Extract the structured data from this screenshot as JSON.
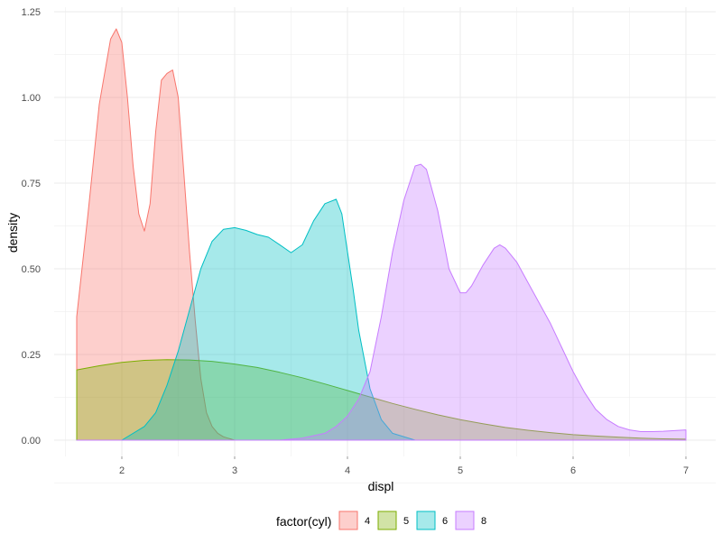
{
  "chart_data": {
    "type": "area",
    "title": "",
    "xlabel": "displ",
    "ylabel": "density",
    "xlim": [
      1.6,
      7.0
    ],
    "ylim": [
      0,
      1.25
    ],
    "x_ticks": [
      2,
      3,
      4,
      5,
      6,
      7
    ],
    "x_tick_labels": [
      "2",
      "3",
      "4",
      "5",
      "6",
      "7"
    ],
    "y_ticks": [
      0,
      0.25,
      0.5,
      0.75,
      1.0,
      1.25
    ],
    "y_tick_labels": [
      "0.00",
      "0.25",
      "0.50",
      "0.75",
      "1.00",
      "1.25"
    ],
    "grid": true,
    "legend": {
      "title": "factor(cyl)",
      "position": "bottom"
    },
    "series": [
      {
        "name": "4",
        "fill": "#F8766D",
        "x": [
          1.6,
          1.7,
          1.8,
          1.9,
          1.95,
          2.0,
          2.05,
          2.1,
          2.15,
          2.2,
          2.25,
          2.3,
          2.35,
          2.4,
          2.45,
          2.5,
          2.55,
          2.6,
          2.65,
          2.7,
          2.75,
          2.8,
          2.85,
          2.9,
          3.0,
          3.1,
          3.2
        ],
        "y": [
          0.36,
          0.66,
          0.98,
          1.17,
          1.2,
          1.16,
          1.0,
          0.8,
          0.66,
          0.61,
          0.69,
          0.9,
          1.05,
          1.07,
          1.08,
          1.0,
          0.78,
          0.55,
          0.35,
          0.18,
          0.08,
          0.04,
          0.02,
          0.01,
          0.0,
          0.0,
          0.0
        ]
      },
      {
        "name": "5",
        "fill": "#7CAE00",
        "x": [
          1.6,
          1.8,
          2.0,
          2.2,
          2.4,
          2.6,
          2.8,
          3.0,
          3.2,
          3.4,
          3.6,
          3.8,
          4.0,
          4.2,
          4.4,
          4.6,
          4.8,
          5.0,
          5.2,
          5.4,
          5.6,
          5.8,
          6.0,
          6.2,
          6.4,
          6.6,
          6.8,
          7.0
        ],
        "y": [
          0.205,
          0.217,
          0.227,
          0.233,
          0.235,
          0.234,
          0.23,
          0.222,
          0.212,
          0.198,
          0.182,
          0.164,
          0.145,
          0.126,
          0.107,
          0.09,
          0.074,
          0.06,
          0.048,
          0.037,
          0.029,
          0.022,
          0.016,
          0.012,
          0.009,
          0.006,
          0.004,
          0.003
        ]
      },
      {
        "name": "6",
        "fill": "#00BFC4",
        "x": [
          1.6,
          2.0,
          2.2,
          2.3,
          2.4,
          2.5,
          2.6,
          2.7,
          2.8,
          2.9,
          3.0,
          3.1,
          3.2,
          3.3,
          3.4,
          3.5,
          3.6,
          3.7,
          3.8,
          3.9,
          3.95,
          4.0,
          4.05,
          4.1,
          4.2,
          4.3,
          4.4,
          4.6,
          4.8,
          5.0
        ],
        "y": [
          0.0,
          0.0,
          0.04,
          0.08,
          0.16,
          0.26,
          0.38,
          0.5,
          0.58,
          0.615,
          0.62,
          0.612,
          0.6,
          0.592,
          0.57,
          0.547,
          0.57,
          0.64,
          0.69,
          0.703,
          0.66,
          0.55,
          0.44,
          0.32,
          0.15,
          0.06,
          0.02,
          0.0,
          0.0,
          0.0
        ]
      },
      {
        "name": "8",
        "fill": "#C77CFF",
        "x": [
          1.6,
          3.4,
          3.6,
          3.8,
          3.9,
          4.0,
          4.1,
          4.2,
          4.3,
          4.4,
          4.5,
          4.6,
          4.65,
          4.7,
          4.8,
          4.9,
          5.0,
          5.05,
          5.1,
          5.2,
          5.3,
          5.35,
          5.4,
          5.5,
          5.6,
          5.7,
          5.8,
          5.9,
          6.0,
          6.1,
          6.2,
          6.3,
          6.4,
          6.5,
          6.6,
          6.7,
          6.8,
          6.9,
          7.0
        ],
        "y": [
          0.0,
          0.0,
          0.006,
          0.02,
          0.04,
          0.07,
          0.12,
          0.2,
          0.36,
          0.55,
          0.7,
          0.8,
          0.805,
          0.79,
          0.67,
          0.5,
          0.43,
          0.43,
          0.45,
          0.51,
          0.56,
          0.57,
          0.56,
          0.52,
          0.46,
          0.4,
          0.34,
          0.27,
          0.2,
          0.14,
          0.09,
          0.06,
          0.04,
          0.03,
          0.025,
          0.025,
          0.026,
          0.028,
          0.03
        ]
      }
    ]
  }
}
